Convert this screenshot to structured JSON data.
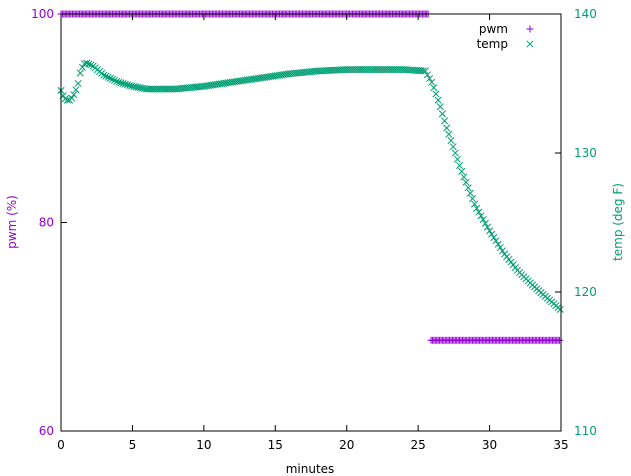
{
  "chart_data": {
    "type": "scatter",
    "xlabel": "minutes",
    "ylabel_left": "pwm (%)",
    "ylabel_right": "temp (deg F)",
    "xlim": [
      0,
      35
    ],
    "ylim_left": [
      60,
      100
    ],
    "ylim_right": [
      110,
      140
    ],
    "x_ticks": [
      0,
      5,
      10,
      15,
      20,
      25,
      30,
      35
    ],
    "y_left_ticks": [
      60,
      80,
      100
    ],
    "y_right_ticks": [
      110,
      120,
      130,
      140
    ],
    "grid": false,
    "legend_position": "top-right",
    "colors": {
      "pwm": "#9400d3",
      "temp": "#009e73",
      "axes": "#000000"
    },
    "series": [
      {
        "name": "pwm",
        "axis": "left",
        "marker": "plus",
        "segments": [
          {
            "x_start": 0,
            "x_end": 25.7,
            "value": 100
          },
          {
            "x_start": 25.9,
            "x_end": 34.9,
            "value": 68.7
          }
        ],
        "sample_interval": 0.1
      },
      {
        "name": "temp",
        "axis": "right",
        "marker": "cross",
        "key_points": [
          [
            0,
            134.5
          ],
          [
            0.2,
            134.0
          ],
          [
            0.4,
            133.8
          ],
          [
            0.6,
            133.8
          ],
          [
            0.8,
            134.0
          ],
          [
            1.0,
            134.4
          ],
          [
            1.2,
            135.0
          ],
          [
            1.4,
            136.0
          ],
          [
            1.7,
            136.5
          ],
          [
            2.2,
            136.3
          ],
          [
            3.0,
            135.6
          ],
          [
            4.0,
            135.1
          ],
          [
            5.0,
            134.8
          ],
          [
            6.0,
            134.6
          ],
          [
            8.0,
            134.6
          ],
          [
            10.0,
            134.8
          ],
          [
            12.0,
            135.1
          ],
          [
            14.0,
            135.4
          ],
          [
            16.0,
            135.7
          ],
          [
            18.0,
            135.9
          ],
          [
            20.0,
            136.0
          ],
          [
            22.0,
            136.0
          ],
          [
            24.0,
            136.0
          ],
          [
            25.5,
            135.9
          ],
          [
            26.0,
            135.0
          ],
          [
            26.5,
            133.5
          ],
          [
            27.0,
            131.8
          ],
          [
            28.0,
            128.8
          ],
          [
            29.0,
            126.2
          ],
          [
            30.0,
            124.4
          ],
          [
            31.0,
            122.8
          ],
          [
            32.0,
            121.5
          ],
          [
            33.0,
            120.5
          ],
          [
            34.0,
            119.6
          ],
          [
            35.0,
            118.7
          ]
        ],
        "sample_interval": 0.15
      }
    ]
  }
}
